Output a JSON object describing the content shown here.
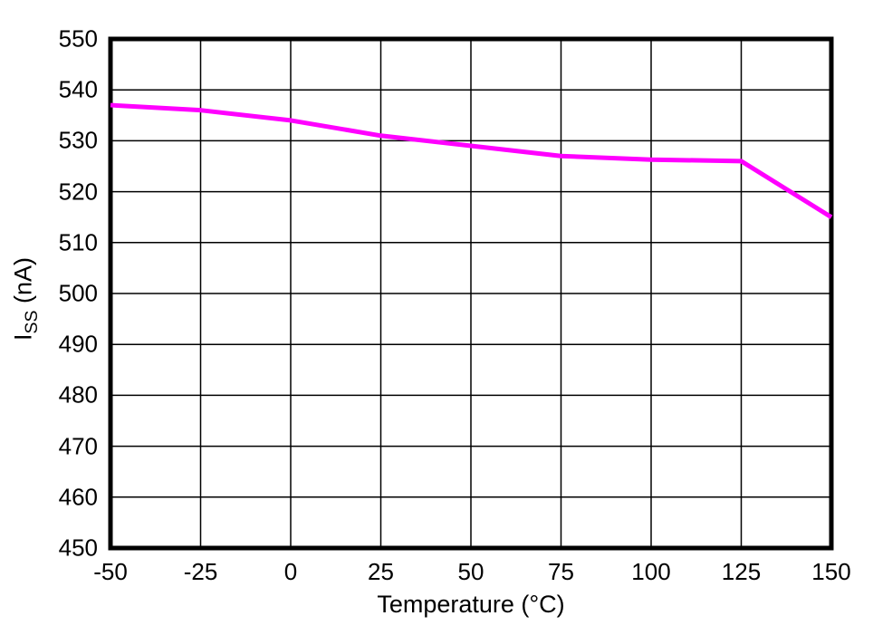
{
  "chart_data": {
    "type": "line",
    "title": "",
    "x": [
      -50,
      -25,
      0,
      25,
      50,
      75,
      100,
      125,
      150
    ],
    "series": [
      {
        "name": "ISS",
        "values": [
          537,
          536,
          534,
          531,
          529,
          527,
          526.3,
          526,
          515
        ],
        "color": "#FF00FF"
      }
    ],
    "xlabel": "Temperature (°C)",
    "ylabel": {
      "pre": "I",
      "sub": "SS",
      "post": " (nA)"
    },
    "xlim": [
      -50,
      150
    ],
    "ylim": [
      450,
      550
    ],
    "xticks": [
      -50,
      -25,
      0,
      25,
      50,
      75,
      100,
      125,
      150
    ],
    "yticks": [
      450,
      460,
      470,
      480,
      490,
      500,
      510,
      520,
      530,
      540,
      550
    ],
    "grid": true,
    "legend": false
  },
  "styles": {
    "background": "#FFFFFF",
    "grid_color": "#000000",
    "border_color": "#000000",
    "text_color": "#000000",
    "line_color": "#FF00FF"
  }
}
